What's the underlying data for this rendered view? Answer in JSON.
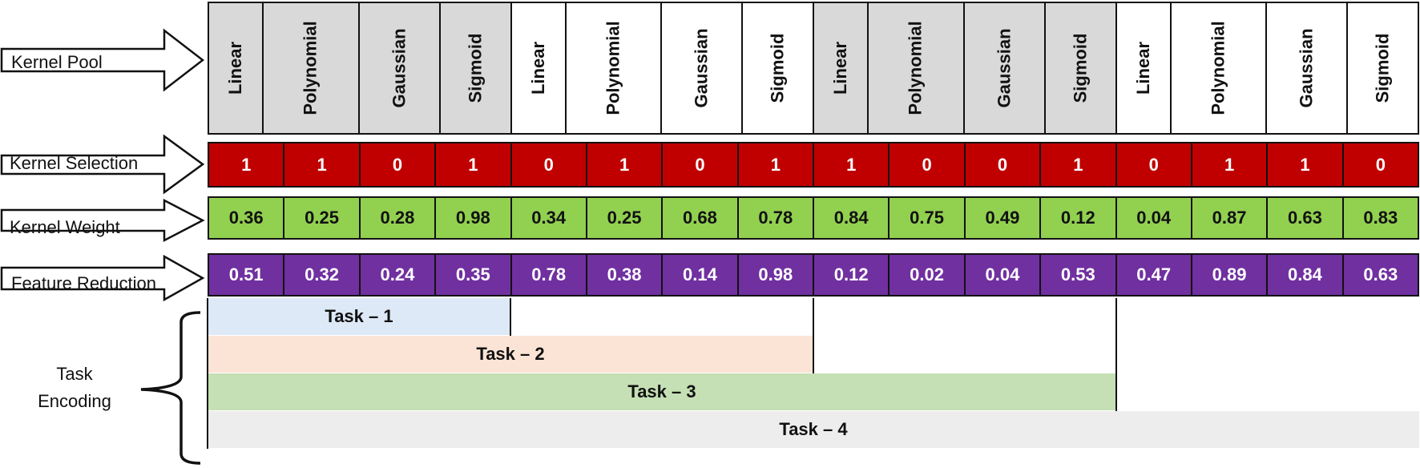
{
  "rows": {
    "kernel_pool": "Kernel Pool",
    "kernel_selection": "Kernel Selection",
    "kernel_weight": "Kernel Weight",
    "feature_reduction": "Feature Reduction"
  },
  "pool": [
    "Linear",
    "Polynomial",
    "Gaussian",
    "Sigmoid",
    "Linear",
    "Polynomial",
    "Gaussian",
    "Sigmoid",
    "Linear",
    "Polynomial",
    "Gaussian",
    "Sigmoid",
    "Linear",
    "Polynomial",
    "Gaussian",
    "Sigmoid"
  ],
  "pool_fill": [
    "#d9d9d9",
    "#d9d9d9",
    "#d9d9d9",
    "#d9d9d9",
    "#ffffff",
    "#ffffff",
    "#ffffff",
    "#ffffff",
    "#d9d9d9",
    "#d9d9d9",
    "#d9d9d9",
    "#d9d9d9",
    "#ffffff",
    "#ffffff",
    "#ffffff",
    "#ffffff"
  ],
  "selection": [
    "1",
    "1",
    "0",
    "1",
    "0",
    "1",
    "0",
    "1",
    "1",
    "0",
    "0",
    "1",
    "0",
    "1",
    "1",
    "0"
  ],
  "weights": [
    "0.36",
    "0.25",
    "0.28",
    "0.98",
    "0.34",
    "0.25",
    "0.68",
    "0.78",
    "0.84",
    "0.75",
    "0.49",
    "0.12",
    "0.04",
    "0.87",
    "0.63",
    "0.83"
  ],
  "reduction": [
    "0.51",
    "0.32",
    "0.24",
    "0.35",
    "0.78",
    "0.38",
    "0.14",
    "0.98",
    "0.12",
    "0.02",
    "0.04",
    "0.53",
    "0.47",
    "0.89",
    "0.84",
    "0.63"
  ],
  "task_encoding": {
    "label_line1": "Task",
    "label_line2": "Encoding",
    "tasks": [
      {
        "label": "Task – 1",
        "span": 4,
        "color": "#dde9f6"
      },
      {
        "label": "Task – 2",
        "span": 8,
        "color": "#fbe4d5"
      },
      {
        "label": "Task – 3",
        "span": 12,
        "color": "#c5e0b4"
      },
      {
        "label": "Task – 4",
        "span": 16,
        "color": "#ededed"
      }
    ]
  },
  "colors": {
    "selection": "#c00000",
    "weight": "#92d050",
    "reduction": "#7030a0"
  }
}
